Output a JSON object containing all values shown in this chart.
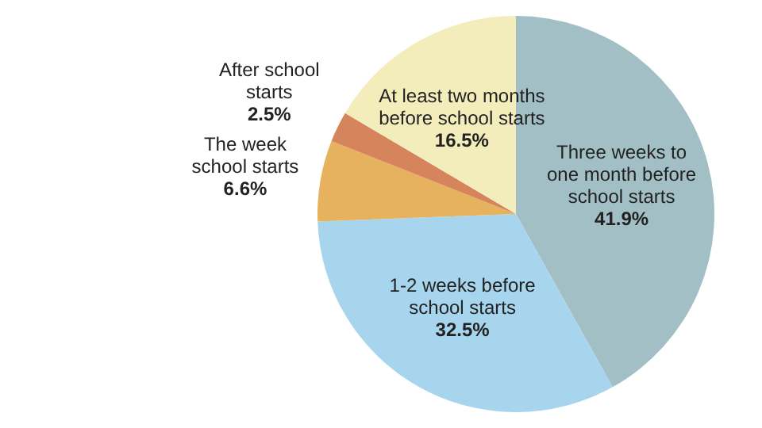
{
  "chart_data": {
    "type": "pie",
    "categories": [
      "Three weeks to one month before school starts",
      "1-2 weeks before school starts",
      "The week school starts",
      "After school starts",
      "At least two months before school starts"
    ],
    "values": [
      41.9,
      32.5,
      6.6,
      2.5,
      16.5
    ],
    "colors": [
      "#a2bfc6",
      "#a6d5ed",
      "#e6b25e",
      "#d5845b",
      "#f3ecbb"
    ],
    "value_labels": [
      "41.9%",
      "32.5%",
      "6.6%",
      "2.5%",
      "16.5%"
    ]
  }
}
